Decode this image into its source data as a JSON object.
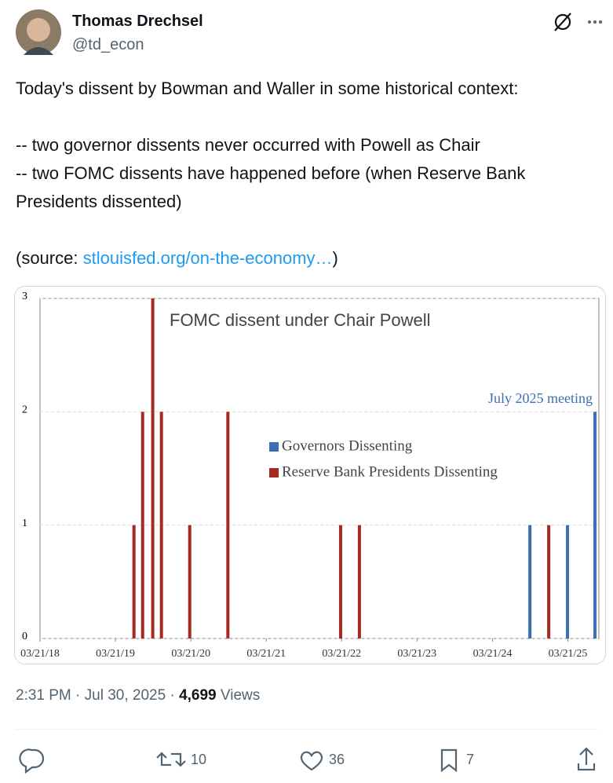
{
  "author": {
    "name": "Thomas Drechsel",
    "handle": "@td_econ"
  },
  "text": {
    "line1": "Today's dissent by Bowman and Waller in some historical context:",
    "line2": "-- two governor dissents never occurred with Powell as Chair",
    "line3": "-- two FOMC dissents have happened before (when Reserve Bank Presidents dissented)",
    "source_prefix": "(source: ",
    "link": "stlouisfed.org/on-the-economy…",
    "source_suffix": ")"
  },
  "chart_data": {
    "type": "bar",
    "title": "FOMC dissent under Chair Powell",
    "annotation": "July 2025 meeting",
    "xlim": [
      "03/21/18",
      "08/18/25"
    ],
    "xticks": [
      "03/21/18",
      "03/21/19",
      "03/21/20",
      "03/21/21",
      "03/21/22",
      "03/21/23",
      "03/21/24",
      "03/21/25"
    ],
    "ylim": [
      0,
      3
    ],
    "yticks": [
      0,
      1,
      2,
      3
    ],
    "grid": true,
    "legend": "center",
    "series": [
      {
        "name": "Governors Dissenting",
        "color": "#3a6fb5",
        "x": [
          "09/18/24",
          "03/19/25",
          "07/30/25"
        ],
        "values": [
          1,
          1,
          2
        ]
      },
      {
        "name": "Reserve Bank Presidents Dissenting",
        "color": "#a52a22",
        "x": [
          "06/19/19",
          "07/31/19",
          "09/18/19",
          "10/30/19",
          "03/15/20",
          "09/16/20",
          "03/16/22",
          "06/15/22",
          "12/18/24"
        ],
        "values": [
          1,
          2,
          3,
          2,
          1,
          2,
          1,
          1,
          1
        ]
      }
    ]
  },
  "footer": {
    "time": "2:31 PM · Jul 30, 2025 · ",
    "views": "4,699",
    "views_label": " Views"
  },
  "actions": {
    "retweets": 10,
    "likes": 36,
    "bookmarks": 7
  }
}
